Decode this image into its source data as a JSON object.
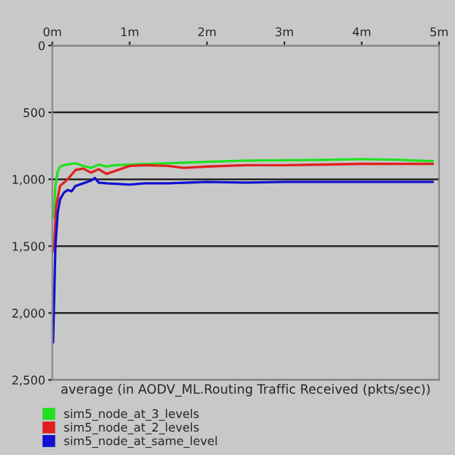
{
  "chart_data": {
    "type": "line",
    "xlabel": "average (in AODV_ML.Routing Traffic Received (pkts/sec))",
    "xlim": [
      0,
      5
    ],
    "xticks": [
      {
        "value": 0,
        "label": "0m"
      },
      {
        "value": 1,
        "label": "1m"
      },
      {
        "value": 2,
        "label": "2m"
      },
      {
        "value": 3,
        "label": "3m"
      },
      {
        "value": 4,
        "label": "4m"
      },
      {
        "value": 5,
        "label": "5m"
      }
    ],
    "ylim": [
      2500,
      0
    ],
    "yticks": [
      {
        "value": 0,
        "label": "0"
      },
      {
        "value": 500,
        "label": "500"
      },
      {
        "value": 1000,
        "label": "1,000"
      },
      {
        "value": 1500,
        "label": "1,500"
      },
      {
        "value": 2000,
        "label": "2,000"
      },
      {
        "value": 2500,
        "label": "2,500"
      }
    ],
    "grid": "y",
    "legend": "bottom",
    "line_style": "solid",
    "marker": "none",
    "series": [
      {
        "name": "sim5_node_at_3_levels",
        "color": "#20e020",
        "x": [
          0.02,
          0.04,
          0.07,
          0.1,
          0.15,
          0.2,
          0.3,
          0.4,
          0.5,
          0.6,
          0.7,
          0.8,
          1.0,
          1.5,
          2.0,
          2.5,
          3.0,
          3.5,
          4.0,
          4.5,
          4.92
        ],
        "values": [
          1290,
          1050,
          940,
          905,
          895,
          890,
          880,
          900,
          915,
          890,
          905,
          895,
          890,
          880,
          870,
          860,
          858,
          855,
          850,
          855,
          865
        ]
      },
      {
        "name": "sim5_node_at_2_levels",
        "color": "#e02020",
        "x": [
          0.02,
          0.05,
          0.1,
          0.2,
          0.3,
          0.4,
          0.5,
          0.6,
          0.7,
          0.8,
          1.0,
          1.2,
          1.5,
          1.7,
          2.0,
          2.5,
          3.0,
          3.5,
          4.0,
          4.5,
          4.92
        ],
        "values": [
          1540,
          1200,
          1050,
          1000,
          930,
          920,
          950,
          925,
          960,
          940,
          900,
          895,
          900,
          915,
          905,
          895,
          895,
          890,
          885,
          885,
          885
        ]
      },
      {
        "name": "sim5_node_at_same_level",
        "color": "#1010d0",
        "x": [
          0.01,
          0.02,
          0.04,
          0.07,
          0.1,
          0.15,
          0.2,
          0.25,
          0.3,
          0.4,
          0.5,
          0.55,
          0.6,
          0.7,
          1.0,
          1.2,
          1.5,
          2.0,
          2.5,
          3.0,
          3.5,
          4.0,
          4.5,
          4.92
        ],
        "values": [
          2220,
          1990,
          1500,
          1250,
          1150,
          1100,
          1080,
          1090,
          1050,
          1030,
          1010,
          990,
          1025,
          1030,
          1040,
          1030,
          1030,
          1020,
          1025,
          1020,
          1020,
          1020,
          1020,
          1020
        ]
      }
    ]
  }
}
